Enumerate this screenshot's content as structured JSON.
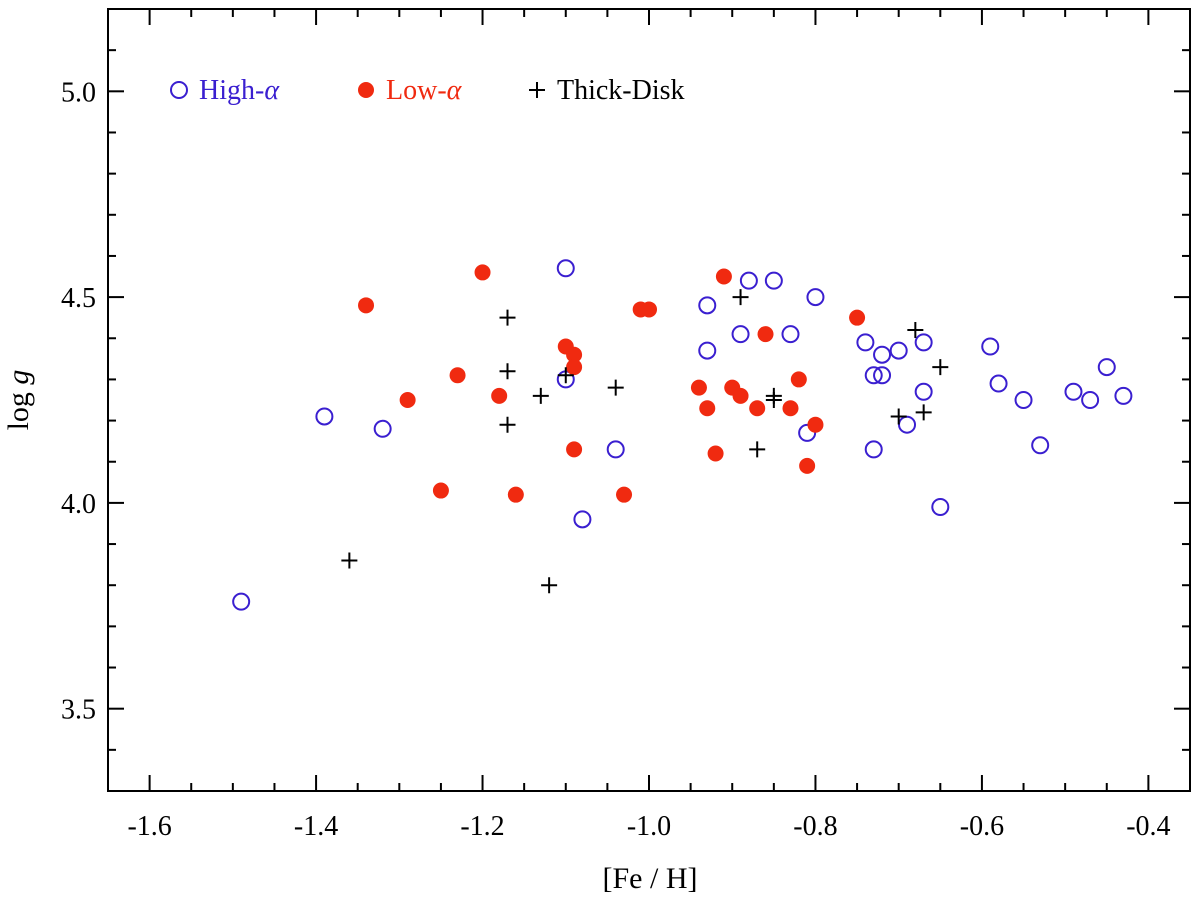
{
  "chart_data": {
    "type": "scatter",
    "title": "",
    "xlabel": "[Fe / H]",
    "ylabel_main": "log ",
    "ylabel_var": "g",
    "xlim": [
      -1.65,
      -0.35
    ],
    "ylim": [
      3.3,
      5.2
    ],
    "xticks": [
      -1.6,
      -1.4,
      -1.2,
      -1.0,
      -0.8,
      -0.6,
      -0.4
    ],
    "xtick_labels": [
      "-1.6",
      "-1.4",
      "-1.2",
      "-1.0",
      "-0.8",
      "-0.6",
      "-0.4"
    ],
    "yticks": [
      3.5,
      4.0,
      4.5,
      5.0
    ],
    "ytick_labels": [
      "3.5",
      "4.0",
      "4.5",
      "5.0"
    ],
    "x_minor_step": 0.05,
    "y_minor_step": 0.1,
    "grid": false,
    "legend_position": "top-left",
    "series": [
      {
        "name": "High-α",
        "label_prefix": "High-",
        "label_symbol": "α",
        "marker": "open-circle",
        "color": "#3a1fd0",
        "points": [
          [
            -1.49,
            3.76
          ],
          [
            -1.39,
            4.21
          ],
          [
            -1.32,
            4.18
          ],
          [
            -1.1,
            4.57
          ],
          [
            -1.1,
            4.3
          ],
          [
            -1.08,
            3.96
          ],
          [
            -1.04,
            4.13
          ],
          [
            -0.93,
            4.48
          ],
          [
            -0.93,
            4.37
          ],
          [
            -0.89,
            4.41
          ],
          [
            -0.88,
            4.54
          ],
          [
            -0.85,
            4.54
          ],
          [
            -0.83,
            4.41
          ],
          [
            -0.81,
            4.17
          ],
          [
            -0.8,
            4.5
          ],
          [
            -0.74,
            4.39
          ],
          [
            -0.73,
            4.31
          ],
          [
            -0.73,
            4.13
          ],
          [
            -0.72,
            4.36
          ],
          [
            -0.72,
            4.31
          ],
          [
            -0.7,
            4.37
          ],
          [
            -0.69,
            4.19
          ],
          [
            -0.67,
            4.39
          ],
          [
            -0.67,
            4.27
          ],
          [
            -0.65,
            3.99
          ],
          [
            -0.59,
            4.38
          ],
          [
            -0.58,
            4.29
          ],
          [
            -0.55,
            4.25
          ],
          [
            -0.53,
            4.14
          ],
          [
            -0.49,
            4.27
          ],
          [
            -0.47,
            4.25
          ],
          [
            -0.45,
            4.33
          ],
          [
            -0.43,
            4.26
          ]
        ]
      },
      {
        "name": "Low-α",
        "label_prefix": "Low-",
        "label_symbol": "α",
        "marker": "filled-circle",
        "color": "#f02a10",
        "points": [
          [
            -1.34,
            4.48
          ],
          [
            -1.29,
            4.25
          ],
          [
            -1.25,
            4.03
          ],
          [
            -1.23,
            4.31
          ],
          [
            -1.2,
            4.56
          ],
          [
            -1.18,
            4.26
          ],
          [
            -1.16,
            4.02
          ],
          [
            -1.1,
            4.38
          ],
          [
            -1.09,
            4.36
          ],
          [
            -1.09,
            4.33
          ],
          [
            -1.09,
            4.13
          ],
          [
            -1.03,
            4.02
          ],
          [
            -1.01,
            4.47
          ],
          [
            -1.0,
            4.47
          ],
          [
            -0.94,
            4.28
          ],
          [
            -0.93,
            4.23
          ],
          [
            -0.92,
            4.12
          ],
          [
            -0.91,
            4.55
          ],
          [
            -0.9,
            4.28
          ],
          [
            -0.89,
            4.26
          ],
          [
            -0.87,
            4.23
          ],
          [
            -0.86,
            4.41
          ],
          [
            -0.83,
            4.23
          ],
          [
            -0.82,
            4.3
          ],
          [
            -0.81,
            4.09
          ],
          [
            -0.8,
            4.19
          ],
          [
            -0.75,
            4.45
          ]
        ]
      },
      {
        "name": "Thick-Disk",
        "label_prefix": "Thick-Disk",
        "label_symbol": "",
        "marker": "plus",
        "color": "#000000",
        "points": [
          [
            -1.36,
            3.86
          ],
          [
            -1.17,
            4.45
          ],
          [
            -1.17,
            4.32
          ],
          [
            -1.17,
            4.19
          ],
          [
            -1.13,
            4.26
          ],
          [
            -1.12,
            3.8
          ],
          [
            -1.1,
            4.31
          ],
          [
            -1.04,
            4.28
          ],
          [
            -0.89,
            4.5
          ],
          [
            -0.87,
            4.13
          ],
          [
            -0.85,
            4.26
          ],
          [
            -0.85,
            4.25
          ],
          [
            -0.7,
            4.21
          ],
          [
            -0.68,
            4.42
          ],
          [
            -0.67,
            4.22
          ],
          [
            -0.65,
            4.33
          ]
        ]
      }
    ]
  }
}
